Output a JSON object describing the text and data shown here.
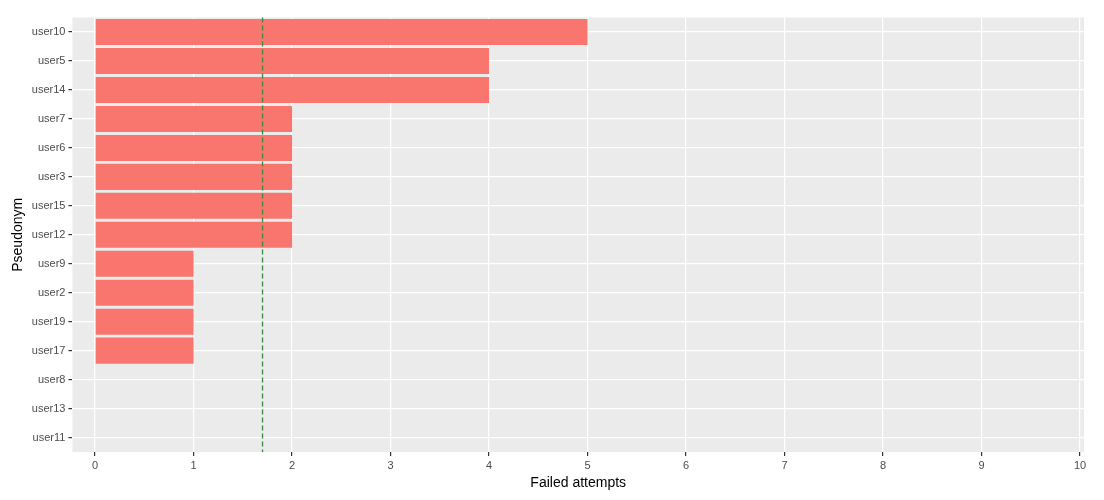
{
  "chart_data": {
    "type": "bar",
    "orientation": "horizontal",
    "xlabel": "Failed attempts",
    "ylabel": "Pseudonym",
    "categories": [
      "user10",
      "user5",
      "user14",
      "user7",
      "user6",
      "user3",
      "user15",
      "user12",
      "user9",
      "user2",
      "user19",
      "user17",
      "user8",
      "user13",
      "user11"
    ],
    "values": [
      5,
      4,
      4,
      2,
      2,
      2,
      2,
      2,
      1,
      1,
      1,
      1,
      0,
      0,
      0
    ],
    "color": "#f8766d",
    "xlim": [
      -0.23,
      10.04
    ],
    "xticks": [
      0,
      1,
      2,
      3,
      4,
      5,
      6,
      7,
      8,
      9,
      10
    ],
    "ref_lines": [
      {
        "axis": "x",
        "value": 1.7,
        "color": "#3a8a3a",
        "line_style": "dashed"
      }
    ],
    "grid": true,
    "legend": false
  }
}
